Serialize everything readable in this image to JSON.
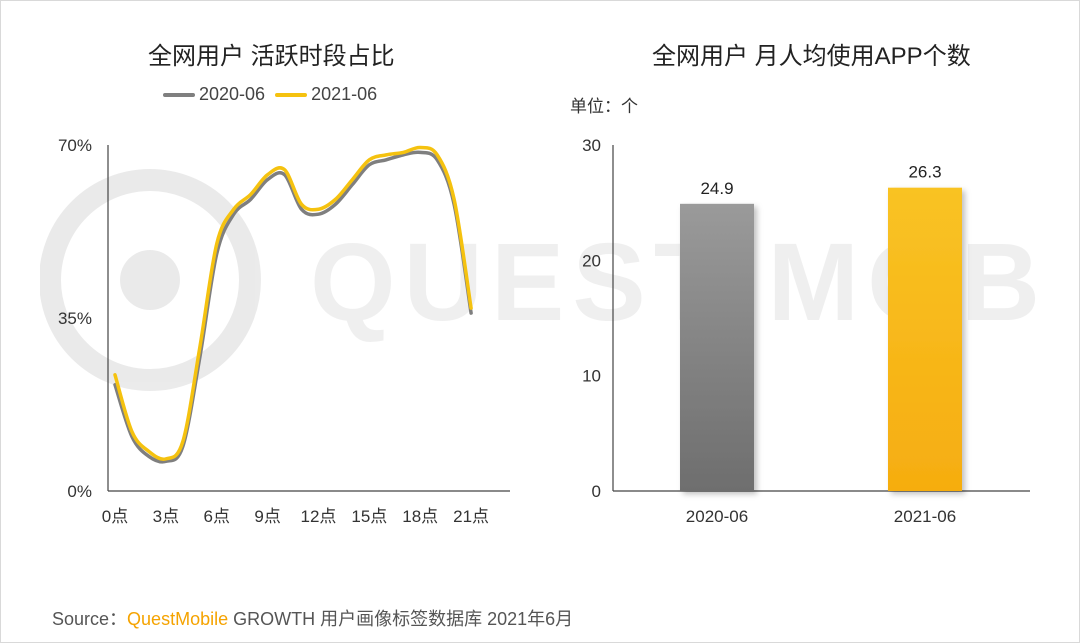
{
  "watermark": {
    "text": "QUEST MOBILE"
  },
  "left_chart": {
    "title": "全网用户 活跃时段占比",
    "legend": [
      "2020-06",
      "2021-06"
    ],
    "colors": [
      "#7f7f7f",
      "#f5c20f"
    ]
  },
  "right_chart": {
    "title": "全网用户 月人均使用APP个数",
    "unit_label": "单位：个",
    "colors": [
      "#7a7a7a",
      "#f7b512"
    ]
  },
  "source": {
    "prefix": "Source：",
    "brand": "QuestMobile",
    "rest": " GROWTH 用户画像标签数据库 2021年6月"
  },
  "chart_data": [
    {
      "type": "line",
      "title": "全网用户 活跃时段占比",
      "x": [
        0,
        1,
        2,
        3,
        4,
        5,
        6,
        7,
        8,
        9,
        10,
        11,
        12,
        13,
        14,
        15,
        16,
        17,
        18,
        19,
        20,
        21,
        22,
        23
      ],
      "x_tick_labels": [
        "0点",
        "3点",
        "6点",
        "9点",
        "12点",
        "15点",
        "18点",
        "21点"
      ],
      "x_tick_values": [
        0,
        3,
        6,
        9,
        12,
        15,
        18,
        21
      ],
      "y_tick_labels": [
        "0%",
        "35%",
        "70%"
      ],
      "y_tick_values": [
        0,
        35,
        70
      ],
      "ylim": [
        0,
        70
      ],
      "series": [
        {
          "name": "2020-06",
          "values": [
            21.5,
            11,
            7,
            6,
            9,
            27,
            48,
            56,
            59,
            63,
            64,
            57,
            56,
            58,
            62,
            66,
            67,
            68,
            68.5,
            67,
            58,
            36,
            null,
            null
          ]
        },
        {
          "name": "2021-06",
          "values": [
            23.5,
            12,
            8,
            6.5,
            10,
            29,
            50,
            57,
            60,
            64,
            65,
            58,
            57,
            59,
            63,
            67,
            68,
            68.5,
            69.5,
            68,
            59,
            37,
            null,
            null
          ]
        }
      ]
    },
    {
      "type": "bar",
      "title": "全网用户 月人均使用APP个数",
      "categories": [
        "2020-06",
        "2021-06"
      ],
      "values": [
        24.9,
        26.3
      ],
      "data_labels": [
        "24.9",
        "26.3"
      ],
      "y_tick_labels": [
        "0",
        "10",
        "20",
        "30"
      ],
      "y_tick_values": [
        0,
        10,
        20,
        30
      ],
      "ylim": [
        0,
        30
      ]
    }
  ]
}
